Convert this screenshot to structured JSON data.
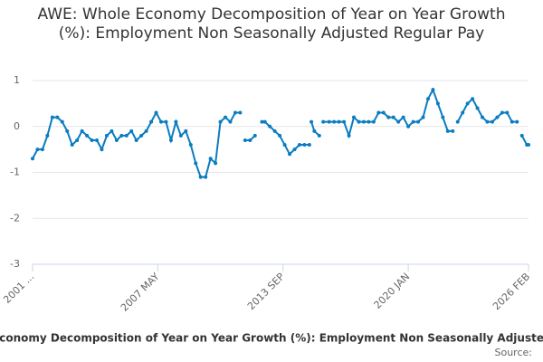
{
  "chart_data": {
    "type": "line",
    "title": "AWE: Whole Economy Decomposition of Year on Year Growth (%): Employment Non Seasonally Adjusted Regular Pay",
    "x_label": "AWE: Whole Economy Decomposition of Year on Year Growth (%): Employment Non Seasonally Adjusted Regular Pay",
    "source": "Source:",
    "x": [
      2001.0,
      2001.25,
      2001.5,
      2001.75,
      2002.0,
      2002.25,
      2002.5,
      2002.75,
      2003.0,
      2003.25,
      2003.5,
      2003.75,
      2004.0,
      2004.25,
      2004.5,
      2004.75,
      2005.0,
      2005.25,
      2005.5,
      2005.75,
      2006.0,
      2006.25,
      2006.5,
      2006.75,
      2007.0,
      2007.25,
      2007.5,
      2007.75,
      2008.0,
      2008.25,
      2008.5,
      2008.75,
      2009.0,
      2009.25,
      2009.5,
      2009.75,
      2010.0,
      2010.25,
      2010.5,
      2010.75,
      2011.0,
      2011.25,
      2011.5,
      2011.6,
      2011.75,
      2012.0,
      2012.25,
      2012.4,
      2012.6,
      2012.75,
      2013.0,
      2013.25,
      2013.5,
      2013.75,
      2014.0,
      2014.25,
      2014.5,
      2014.75,
      2015.0,
      2015.05,
      2015.1,
      2015.25,
      2015.5,
      2015.6,
      2015.7,
      2016.0,
      2016.25,
      2016.5,
      2016.75,
      2017.0,
      2017.25,
      2017.5,
      2017.75,
      2018.0,
      2018.25,
      2018.5,
      2018.75,
      2019.0,
      2019.25,
      2019.5,
      2019.75,
      2020.0,
      2020.25,
      2020.5,
      2020.75,
      2021.0,
      2021.25,
      2021.5,
      2021.75,
      2022.0,
      2022.25,
      2022.4,
      2022.5,
      2022.75,
      2023.0,
      2023.25,
      2023.5,
      2023.75,
      2024.0,
      2024.25,
      2024.5,
      2024.75,
      2025.0,
      2025.25,
      2025.5,
      2025.6,
      2025.75,
      2026.0,
      2026.083
    ],
    "series": [
      {
        "color": "#0a7cc1",
        "values": [
          -0.7,
          -0.5,
          -0.5,
          -0.2,
          0.2,
          0.2,
          0.1,
          -0.1,
          -0.4,
          -0.3,
          -0.1,
          -0.2,
          -0.3,
          -0.3,
          -0.5,
          -0.2,
          -0.1,
          -0.3,
          -0.2,
          -0.2,
          -0.1,
          -0.3,
          -0.2,
          -0.1,
          0.1,
          0.3,
          0.1,
          0.1,
          -0.3,
          0.1,
          -0.2,
          -0.1,
          -0.4,
          -0.8,
          -1.1,
          -1.1,
          -0.7,
          -0.8,
          0.1,
          0.2,
          0.1,
          0.3,
          0.3,
          null,
          -0.3,
          -0.3,
          -0.2,
          null,
          0.1,
          0.1,
          0.0,
          -0.1,
          -0.2,
          -0.4,
          -0.6,
          -0.5,
          -0.4,
          -0.4,
          -0.4,
          null,
          0.1,
          -0.1,
          -0.2,
          null,
          0.1,
          0.1,
          0.1,
          0.1,
          0.1,
          -0.2,
          0.2,
          0.1,
          0.1,
          0.1,
          0.1,
          0.3,
          0.3,
          0.2,
          0.2,
          0.1,
          0.2,
          0.0,
          0.1,
          0.1,
          0.2,
          0.6,
          0.8,
          0.5,
          0.2,
          -0.1,
          -0.1,
          null,
          0.1,
          0.3,
          0.5,
          0.6,
          0.4,
          0.2,
          0.1,
          0.1,
          0.2,
          0.3,
          0.3,
          0.1,
          0.1,
          null,
          -0.2,
          -0.4,
          -0.4
        ]
      }
    ],
    "xlim": [
      2001.0,
      2026.083
    ],
    "xticks": [
      {
        "value": 2001.0,
        "label": "2001 ..."
      },
      {
        "value": 2007.333,
        "label": "2007 MAY"
      },
      {
        "value": 2013.667,
        "label": "2013 SEP"
      },
      {
        "value": 2020.0,
        "label": "2020 JAN"
      },
      {
        "value": 2026.083,
        "label": "2026 FEB"
      }
    ],
    "ylim": [
      -3,
      1
    ],
    "yticks": [
      -3,
      -2,
      -1,
      0,
      1
    ],
    "grid": true
  }
}
